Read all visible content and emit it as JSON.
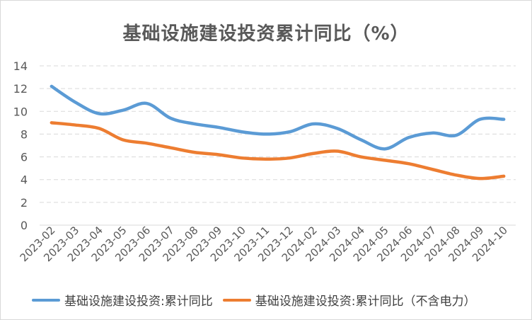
{
  "chart_data": {
    "type": "line",
    "title": "基础设施建设投资累计同比（%）",
    "categories": [
      "2023-02",
      "2023-03",
      "2023-04",
      "2023-05",
      "2023-06",
      "2023-07",
      "2023-08",
      "2023-09",
      "2023-10",
      "2023-11",
      "2023-12",
      "2024-02",
      "2024-03",
      "2024-04",
      "2024-05",
      "2024-06",
      "2024-07",
      "2024-08",
      "2024-09",
      "2024-10"
    ],
    "series": [
      {
        "name": "基础设施建设投资:累计同比",
        "color": "#5b9bd5",
        "values": [
          12.2,
          10.8,
          9.8,
          10.1,
          10.7,
          9.4,
          8.9,
          8.6,
          8.2,
          8.0,
          8.2,
          8.9,
          8.5,
          7.5,
          6.7,
          7.7,
          8.1,
          7.9,
          9.3,
          9.3
        ]
      },
      {
        "name": "基础设施建设投资:累计同比（不含电力）",
        "color": "#ed7d31",
        "values": [
          9.0,
          8.8,
          8.5,
          7.5,
          7.2,
          6.8,
          6.4,
          6.2,
          5.9,
          5.8,
          5.9,
          6.3,
          6.5,
          6.0,
          5.7,
          5.4,
          4.9,
          4.4,
          4.1,
          4.3
        ]
      }
    ],
    "yticks": [
      "0",
      "2",
      "4",
      "6",
      "8",
      "10",
      "12",
      "14"
    ],
    "ylim": [
      0,
      14
    ],
    "grid": true,
    "legend_position": "bottom",
    "gridline_color": "#d9d9d9",
    "axis_label_color": "#595959"
  }
}
